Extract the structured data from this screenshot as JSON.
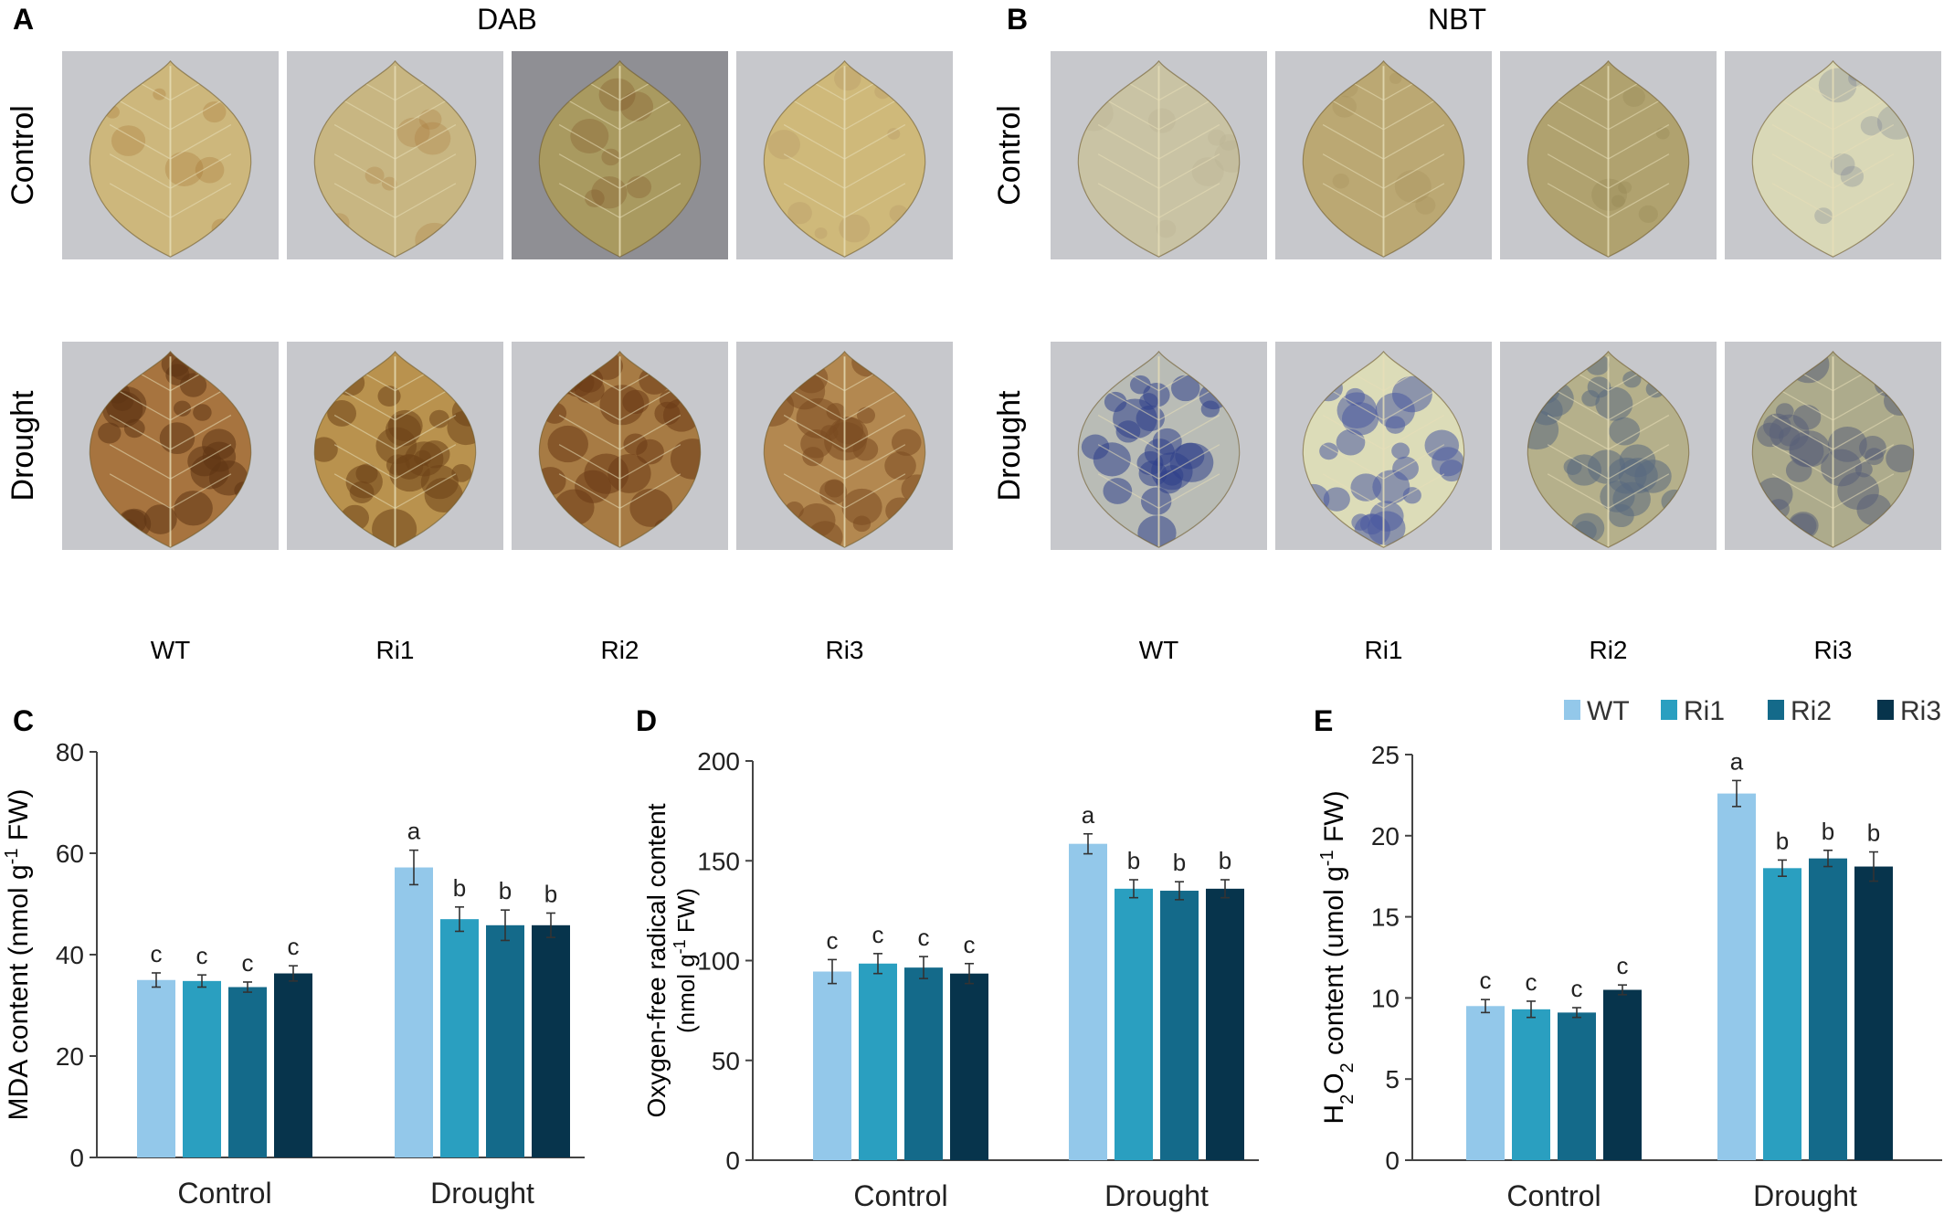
{
  "panels": {
    "A": {
      "letter": "A",
      "title": "DAB"
    },
    "B": {
      "letter": "B",
      "title": "NBT"
    }
  },
  "photo_rows": [
    "Control",
    "Drought"
  ],
  "photo_columns": [
    "WT",
    "Ri1",
    "Ri2",
    "Ri3"
  ],
  "photo_tints": {
    "A": {
      "Control": [
        "#cdb77c",
        "#c8b682",
        "#a99a60",
        "#cfb97a"
      ],
      "Drought": [
        "#a7743f",
        "#b9924e",
        "#a77b44",
        "#b38850"
      ]
    },
    "B": {
      "Control": [
        "#c9c3a4",
        "#bba873",
        "#b0a26f",
        "#d9d8b7"
      ],
      "Drought": [
        "#b9bcb6",
        "#dcdcb8",
        "#b5b08b",
        "#adab8c"
      ]
    }
  },
  "photo_stain": {
    "A": {
      "Control": [
        "#a06a2c",
        "#a8763a",
        "#7a4c1f",
        "#b09060"
      ],
      "Drought": [
        "#5e3414",
        "#6d4118",
        "#6b3a16",
        "#7a4a20"
      ]
    },
    "B": {
      "Control": [
        "#b8b090",
        "#a08c55",
        "#8e8050",
        "#6e7890"
      ],
      "Drought": [
        "#2f3f8a",
        "#4a5aa0",
        "#5a6a80",
        "#5a6078"
      ]
    }
  },
  "legend": [
    {
      "label": "WT",
      "color": "#93c8ea"
    },
    {
      "label": "Ri1",
      "color": "#2a9fc0"
    },
    {
      "label": "Ri2",
      "color": "#146a8a"
    },
    {
      "label": "Ri3",
      "color": "#07344c"
    }
  ],
  "chart_data": [
    {
      "panel": "C",
      "type": "bar",
      "categories": [
        "Control",
        "Drought"
      ],
      "series": [
        {
          "name": "WT",
          "values": [
            35.0,
            57.2
          ],
          "errors": [
            1.4,
            3.4
          ],
          "letters": [
            "c",
            "a"
          ]
        },
        {
          "name": "Ri1",
          "values": [
            34.8,
            47.0
          ],
          "errors": [
            1.2,
            2.4
          ],
          "letters": [
            "c",
            "b"
          ]
        },
        {
          "name": "Ri2",
          "values": [
            33.6,
            45.8
          ],
          "errors": [
            1.0,
            3.0
          ],
          "letters": [
            "c",
            "b"
          ]
        },
        {
          "name": "Ri3",
          "values": [
            36.3,
            45.8
          ],
          "errors": [
            1.5,
            2.4
          ],
          "letters": [
            "c",
            "b"
          ]
        }
      ],
      "ylabel": "MDA content (nmol g-1 FW)",
      "ylabel_parts": [
        "MDA content (nmol g",
        "-1",
        " FW)"
      ],
      "ylim": [
        0,
        80
      ],
      "yticks": [
        0,
        20,
        40,
        60,
        80
      ]
    },
    {
      "panel": "D",
      "type": "bar",
      "categories": [
        "Control",
        "Drought"
      ],
      "series": [
        {
          "name": "WT",
          "values": [
            94.5,
            158.5
          ],
          "errors": [
            6.0,
            5.0
          ],
          "letters": [
            "c",
            "a"
          ]
        },
        {
          "name": "Ri1",
          "values": [
            98.5,
            136.0
          ],
          "errors": [
            5.0,
            4.5
          ],
          "letters": [
            "c",
            "b"
          ]
        },
        {
          "name": "Ri2",
          "values": [
            96.5,
            135.0
          ],
          "errors": [
            5.5,
            4.5
          ],
          "letters": [
            "c",
            "b"
          ]
        },
        {
          "name": "Ri3",
          "values": [
            93.5,
            136.0
          ],
          "errors": [
            5.0,
            4.5
          ],
          "letters": [
            "c",
            "b"
          ]
        }
      ],
      "ylabel_line1": "Oxygen-free radical content",
      "ylabel_line2": "(nmol g-1 FW)",
      "ylabel_line2_parts": [
        "(nmol g",
        "-1",
        " FW)"
      ],
      "ylim": [
        0,
        200
      ],
      "yticks": [
        0,
        50,
        100,
        150,
        200
      ]
    },
    {
      "panel": "E",
      "type": "bar",
      "categories": [
        "Control",
        "Drought"
      ],
      "series": [
        {
          "name": "WT",
          "values": [
            9.5,
            22.6
          ],
          "errors": [
            0.4,
            0.8
          ],
          "letters": [
            "c",
            "a"
          ]
        },
        {
          "name": "Ri1",
          "values": [
            9.3,
            18.0
          ],
          "errors": [
            0.5,
            0.5
          ],
          "letters": [
            "c",
            "b"
          ]
        },
        {
          "name": "Ri2",
          "values": [
            9.1,
            18.6
          ],
          "errors": [
            0.3,
            0.5
          ],
          "letters": [
            "c",
            "b"
          ]
        },
        {
          "name": "Ri3",
          "values": [
            10.5,
            18.1
          ],
          "errors": [
            0.3,
            0.9
          ],
          "letters": [
            "c",
            "b"
          ]
        }
      ],
      "ylabel": "H2O2 content (umol g-1 FW)",
      "ylabel_parts": [
        "H",
        "2",
        "O",
        "2",
        " content (umol g",
        "-1",
        " FW)"
      ],
      "ylim": [
        0,
        25
      ],
      "yticks": [
        0,
        5,
        10,
        15,
        20,
        25
      ]
    }
  ]
}
